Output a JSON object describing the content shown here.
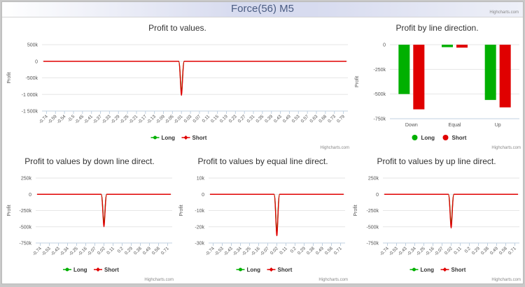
{
  "page": {
    "title": "Force(56) M5",
    "credit": "Highcharts.com"
  },
  "chart_data": [
    {
      "id": "c0",
      "type": "line",
      "title": "Profit to values.",
      "ylabel": "Profit",
      "ylim": [
        -1500000,
        500000
      ],
      "yticks": [
        500000,
        0,
        -500000,
        -1000000,
        -1500000
      ],
      "ytick_labels": [
        "500k",
        "0",
        "-500k",
        "-1 000k",
        "-1 500k"
      ],
      "x": [
        -0.74,
        -0.59,
        -0.54,
        -0.5,
        -0.45,
        -0.41,
        -0.37,
        -0.33,
        -0.29,
        -0.25,
        -0.21,
        -0.17,
        -0.13,
        -0.09,
        -0.05,
        -0.01,
        0.03,
        0.07,
        0.11,
        0.15,
        0.19,
        0.23,
        0.27,
        0.31,
        0.35,
        0.39,
        0.43,
        0.49,
        0.53,
        0.57,
        0.63,
        0.68,
        0.73,
        0.79
      ],
      "xtick_labels": [
        "-0.74",
        "-0.59",
        "-0.54",
        "-0.5",
        "-0.45",
        "-0.41",
        "-0.37",
        "-0.33",
        "-0.29",
        "-0.25",
        "-0.21",
        "-0.17",
        "-0.13",
        "-0.09",
        "-0.05",
        "-0.01",
        "0.03",
        "0.07",
        "0.11",
        "0.15",
        "0.19",
        "0.23",
        "0.27",
        "0.31",
        "0.35",
        "0.39",
        "0.43",
        "0.49",
        "0.53",
        "0.57",
        "0.63",
        "0.68",
        "0.73",
        "0.79"
      ],
      "spike_index": 15,
      "series": [
        {
          "name": "Long",
          "color": "#00b000",
          "spike": -950000
        },
        {
          "name": "Short",
          "color": "#e00000",
          "spike": -1030000
        }
      ],
      "legend": "bottom-center",
      "grid": true
    },
    {
      "id": "c1",
      "type": "bar",
      "title": "Profit by line direction.",
      "ylabel": "Profit",
      "ylim": [
        -750000,
        0
      ],
      "yticks": [
        0,
        -250000,
        -500000,
        -750000
      ],
      "ytick_labels": [
        "0",
        "-250k",
        "-500k",
        "-750k"
      ],
      "categories": [
        "Down",
        "Equal",
        "Up"
      ],
      "series": [
        {
          "name": "Long",
          "color": "#00b000",
          "values": [
            -500000,
            -25000,
            -560000
          ]
        },
        {
          "name": "Short",
          "color": "#e00000",
          "values": [
            -655000,
            -30000,
            -635000
          ]
        }
      ],
      "legend": "bottom-center",
      "grid": true
    },
    {
      "id": "c2",
      "type": "line",
      "title": "Profit to values by down line direct.",
      "ylabel": "Profit",
      "ylim": [
        -750000,
        250000
      ],
      "yticks": [
        250000,
        0,
        -250000,
        -500000,
        -750000
      ],
      "ytick_labels": [
        "250k",
        "0",
        "-250k",
        "-500k",
        "-750k"
      ],
      "xtick_labels": [
        "-0.74",
        "-0.53",
        "-0.43",
        "-0.34",
        "-0.25",
        "-0.16",
        "-0.07",
        "0.02",
        "0.11",
        "0.2",
        "0.29",
        "0.38",
        "0.49",
        "0.58",
        "0.71"
      ],
      "spike_index": 7,
      "series": [
        {
          "name": "Long",
          "color": "#00b000",
          "spike": -460000
        },
        {
          "name": "Short",
          "color": "#e00000",
          "spike": -500000
        }
      ],
      "legend": "bottom-center",
      "grid": true
    },
    {
      "id": "c3",
      "type": "line",
      "title": "Profit to values by equal line direct.",
      "ylabel": "Profit",
      "ylim": [
        -30000,
        10000
      ],
      "yticks": [
        10000,
        0,
        -10000,
        -20000,
        -30000
      ],
      "ytick_labels": [
        "10k",
        "0",
        "-10k",
        "-20k",
        "-30k"
      ],
      "xtick_labels": [
        "-0.74",
        "-0.53",
        "-0.43",
        "-0.34",
        "-0.25",
        "-0.16",
        "-0.07",
        "0.02",
        "0.11",
        "0.2",
        "0.29",
        "0.38",
        "0.49",
        "0.58",
        "0.71"
      ],
      "spike_index": 7,
      "series": [
        {
          "name": "Long",
          "color": "#00b000",
          "spike": -24000
        },
        {
          "name": "Short",
          "color": "#e00000",
          "spike": -25500
        }
      ],
      "legend": "bottom-center",
      "grid": true
    },
    {
      "id": "c4",
      "type": "line",
      "title": "Profit to values by up line direct.",
      "ylabel": "Profit",
      "ylim": [
        -750000,
        250000
      ],
      "yticks": [
        250000,
        0,
        -250000,
        -500000,
        -750000
      ],
      "ytick_labels": [
        "250k",
        "0",
        "-250k",
        "-500k",
        "-750k"
      ],
      "xtick_labels": [
        "-0.74",
        "-0.53",
        "-0.43",
        "-0.34",
        "-0.25",
        "-0.16",
        "-0.07",
        "0.02",
        "0.11",
        "0.2",
        "0.29",
        "0.38",
        "0.49",
        "0.58",
        "0.71"
      ],
      "spike_index": 7,
      "series": [
        {
          "name": "Long",
          "color": "#00b000",
          "spike": -470000
        },
        {
          "name": "Short",
          "color": "#e00000",
          "spike": -520000
        }
      ],
      "legend": "bottom-center",
      "grid": true
    }
  ]
}
